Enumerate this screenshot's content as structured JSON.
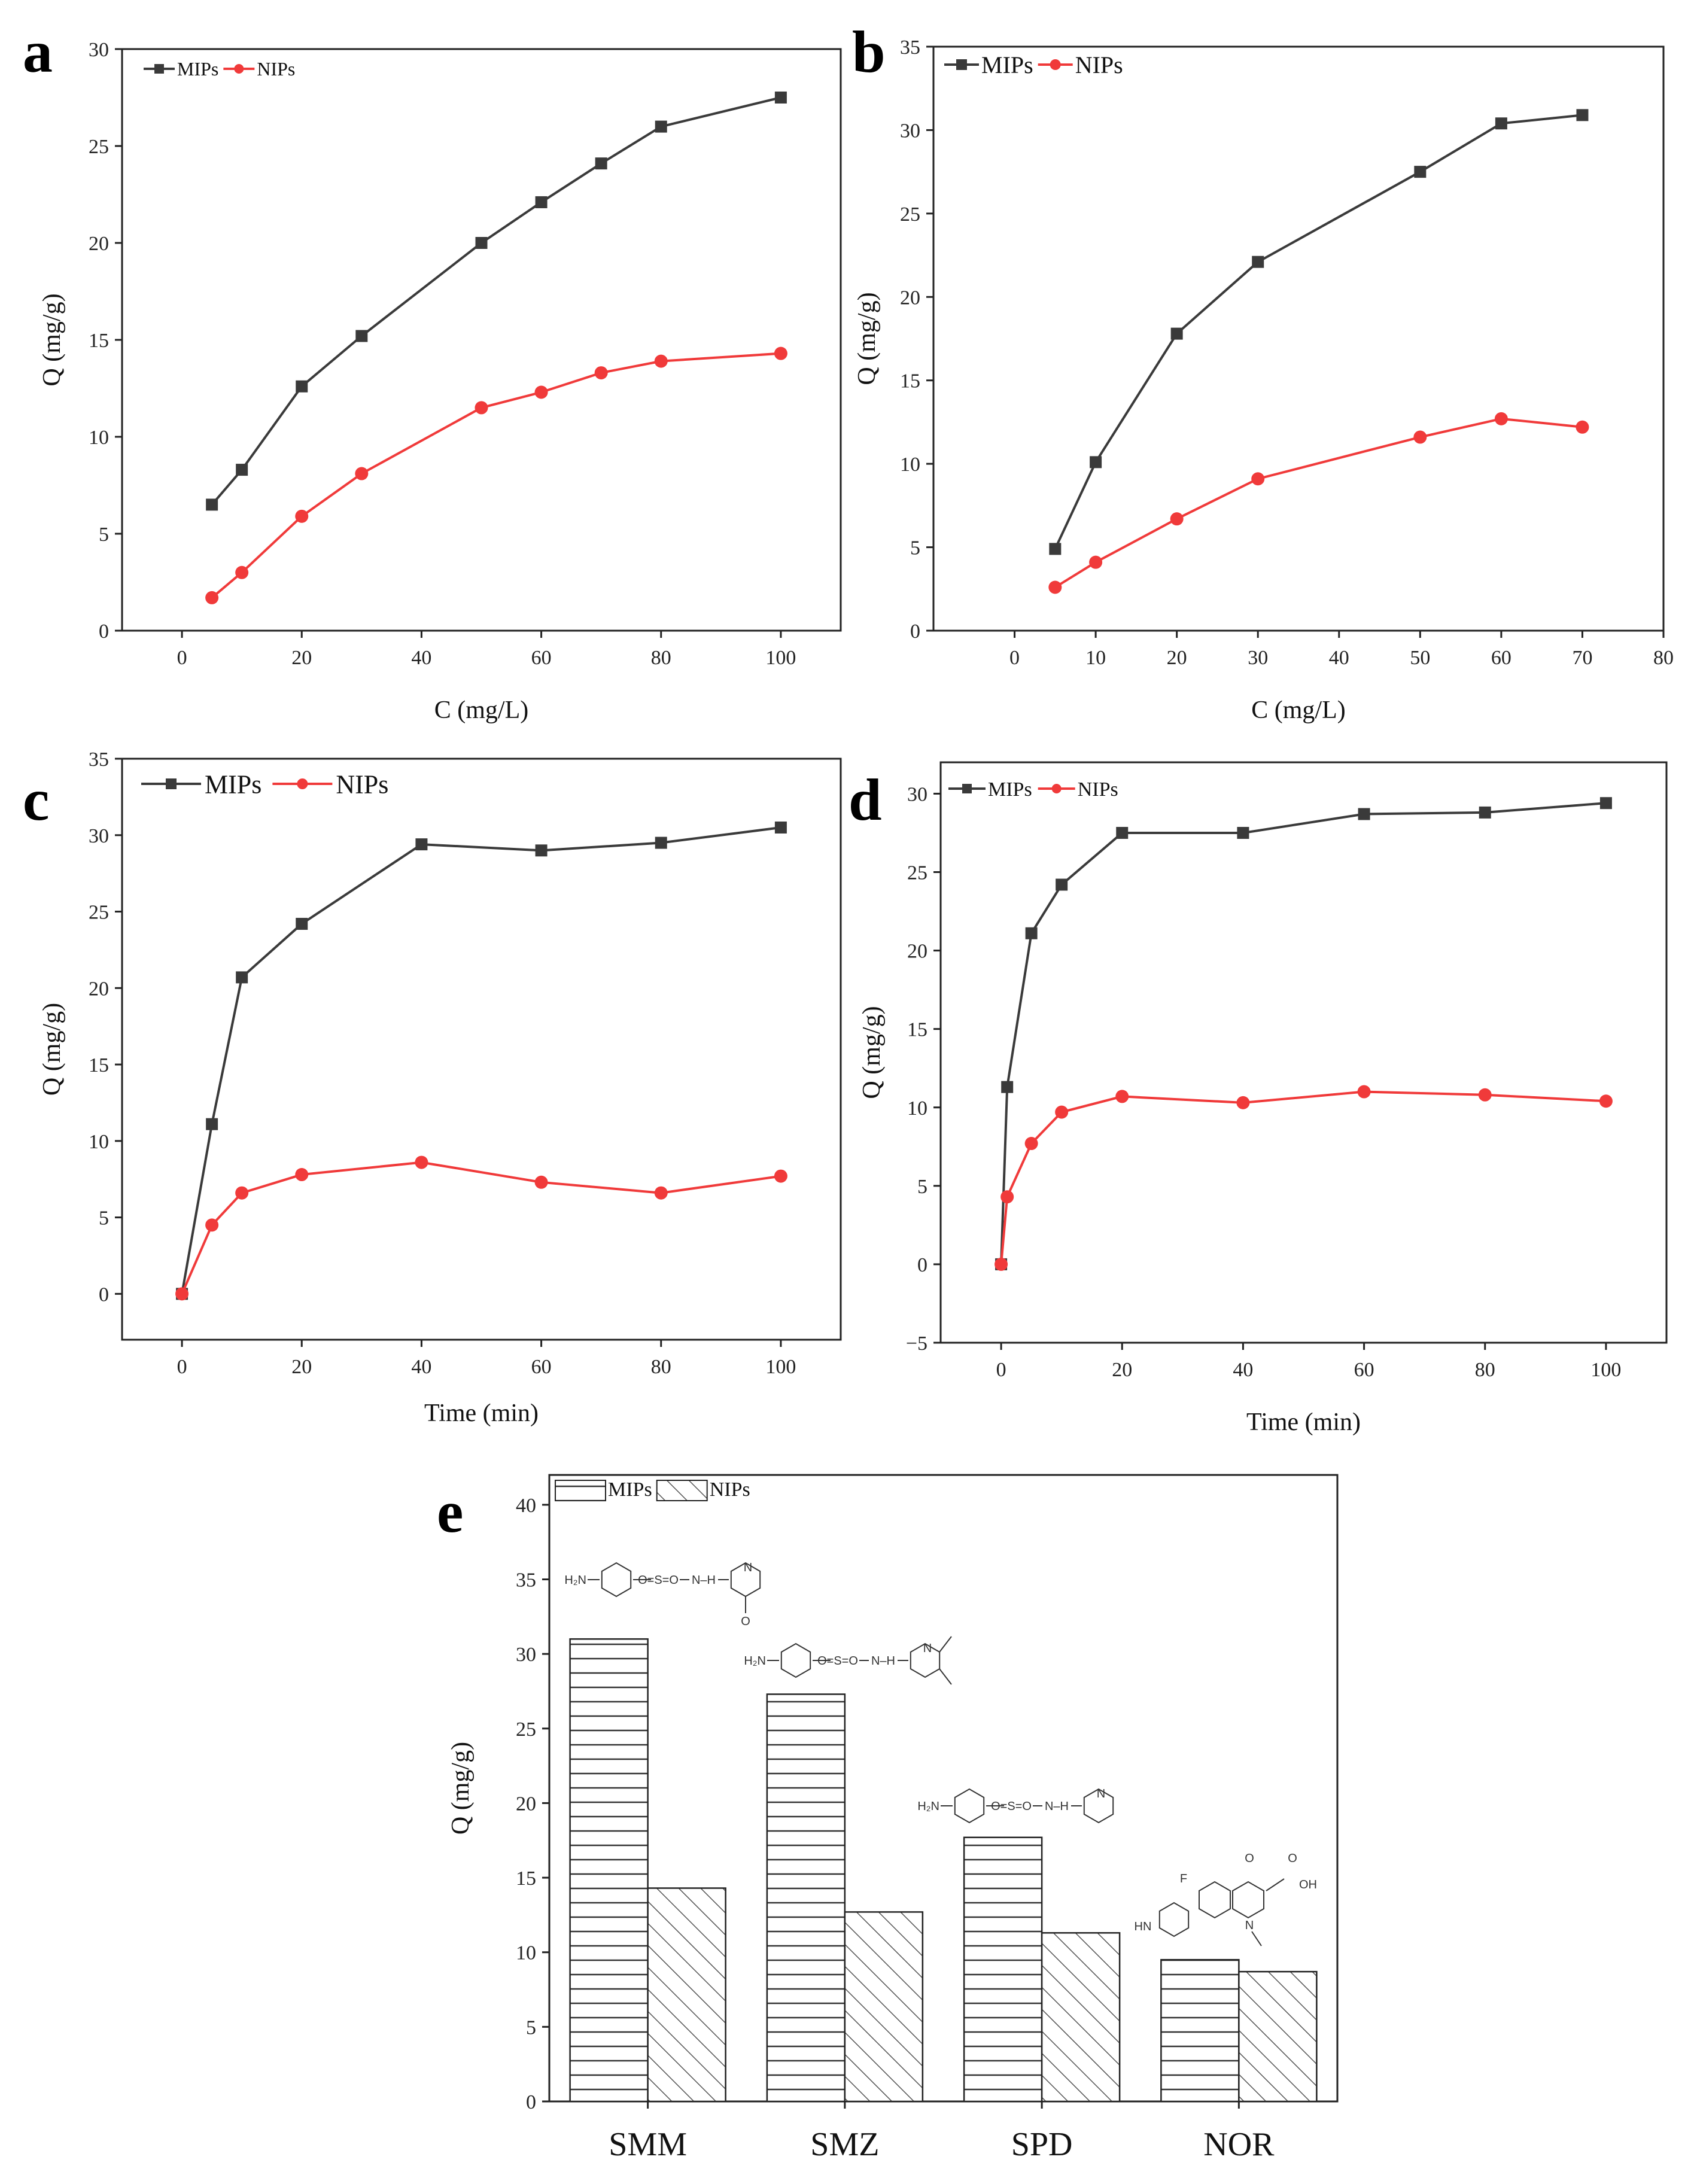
{
  "figure": {
    "chart_data": [
      {
        "panel": "a",
        "type": "line",
        "xlabel": "C (mg/L)",
        "ylabel": "Q (mg/g)",
        "xlim": [
          -10,
          110
        ],
        "ylim": [
          0,
          30
        ],
        "xticks": [
          0,
          20,
          40,
          60,
          80,
          100
        ],
        "yticks": [
          0,
          5,
          10,
          15,
          20,
          25,
          30
        ],
        "legend": "top-left",
        "series": [
          {
            "name": "MIPs",
            "color": "#3a3a3a",
            "marker": "square",
            "x": [
              5,
              10,
              20,
              30,
              50,
              60,
              70,
              80,
              100
            ],
            "y": [
              6.5,
              8.3,
              12.6,
              15.2,
              20.0,
              22.1,
              24.1,
              26.0,
              27.5
            ]
          },
          {
            "name": "NIPs",
            "color": "#f03a3a",
            "marker": "circle",
            "x": [
              5,
              10,
              20,
              30,
              50,
              60,
              70,
              80,
              100
            ],
            "y": [
              1.7,
              3.0,
              5.9,
              8.1,
              11.5,
              12.3,
              13.3,
              13.9,
              14.3
            ]
          }
        ]
      },
      {
        "panel": "b",
        "type": "line",
        "xlabel": "C (mg/L)",
        "ylabel": "Q (mg/g)",
        "xlim": [
          -10,
          80
        ],
        "ylim": [
          0,
          35
        ],
        "xticks": [
          0,
          10,
          20,
          30,
          40,
          50,
          60,
          70,
          80
        ],
        "yticks": [
          0,
          5,
          10,
          15,
          20,
          25,
          30,
          35
        ],
        "legend": "top-left",
        "series": [
          {
            "name": "MIPs",
            "color": "#3a3a3a",
            "marker": "square",
            "x": [
              5,
              10,
              20,
              30,
              50,
              60,
              70
            ],
            "y": [
              4.9,
              10.1,
              17.8,
              22.1,
              27.5,
              30.4,
              30.9
            ]
          },
          {
            "name": "NIPs",
            "color": "#f03a3a",
            "marker": "circle",
            "x": [
              5,
              10,
              20,
              30,
              50,
              60,
              70
            ],
            "y": [
              2.6,
              4.1,
              6.7,
              9.1,
              11.6,
              12.7,
              12.2
            ]
          }
        ]
      },
      {
        "panel": "c",
        "type": "line",
        "xlabel": "Time (min)",
        "ylabel": "Q (mg/g)",
        "xlim": [
          -10,
          110
        ],
        "ylim": [
          -3,
          35
        ],
        "xticks": [
          0,
          20,
          40,
          60,
          80,
          100
        ],
        "yticks": [
          0,
          5,
          10,
          15,
          20,
          25,
          30,
          35
        ],
        "legend": "top-left",
        "series": [
          {
            "name": "MIPs",
            "color": "#3a3a3a",
            "marker": "square",
            "x": [
              0,
              5,
              10,
              20,
              40,
              60,
              80,
              100
            ],
            "y": [
              0.0,
              11.1,
              20.7,
              24.2,
              29.4,
              29.0,
              29.5,
              30.5
            ]
          },
          {
            "name": "NIPs",
            "color": "#f03a3a",
            "marker": "circle",
            "x": [
              0,
              5,
              10,
              20,
              40,
              60,
              80,
              100
            ],
            "y": [
              0.0,
              4.5,
              6.6,
              7.8,
              8.6,
              7.3,
              6.6,
              7.7
            ]
          }
        ]
      },
      {
        "panel": "d",
        "type": "line",
        "xlabel": "Time (min)",
        "ylabel": "Q (mg/g)",
        "xlim": [
          -10,
          110
        ],
        "ylim": [
          -5,
          32
        ],
        "xticks": [
          0,
          20,
          40,
          60,
          80,
          100
        ],
        "yticks": [
          -5,
          0,
          5,
          10,
          15,
          20,
          25,
          30
        ],
        "ytick_labels": [
          "−5",
          "0",
          "5",
          "10",
          "15",
          "20",
          "25",
          "30"
        ],
        "legend": "top-left",
        "series": [
          {
            "name": "MIPs",
            "color": "#3a3a3a",
            "marker": "square",
            "x": [
              0,
              1,
              5,
              10,
              20,
              40,
              60,
              80,
              100
            ],
            "y": [
              0.0,
              11.3,
              21.1,
              24.2,
              27.5,
              27.5,
              28.7,
              28.8,
              29.4
            ]
          },
          {
            "name": "NIPs",
            "color": "#f03a3a",
            "marker": "circle",
            "x": [
              0,
              1,
              5,
              10,
              20,
              40,
              60,
              80,
              100
            ],
            "y": [
              0.0,
              4.3,
              7.7,
              9.7,
              10.7,
              10.3,
              11.0,
              10.8,
              10.4
            ]
          }
        ]
      },
      {
        "panel": "e",
        "type": "bar",
        "xlabel": "",
        "ylabel": "Q (mg/g)",
        "ylim": [
          0,
          42
        ],
        "yticks": [
          0,
          5,
          10,
          15,
          20,
          25,
          30,
          35,
          40
        ],
        "categories": [
          "SMM",
          "SMZ",
          "SPD",
          "NOR"
        ],
        "legend": "top-left",
        "series": [
          {
            "name": "MIPs",
            "pattern": "horizontal-lines",
            "values": [
              31.0,
              27.3,
              17.7,
              9.5
            ]
          },
          {
            "name": "NIPs",
            "pattern": "diagonal-hatch",
            "values": [
              14.3,
              12.7,
              11.3,
              8.7
            ]
          }
        ],
        "structure_labels": {
          "SMM": {
            "amine": "H₂N",
            "sulfonyl": "O=S=O",
            "nh": "N–H",
            "ring_n": "N",
            "methoxy": "O"
          },
          "SMZ": {
            "amine": "H₂N",
            "sulfonyl": "O=S=O",
            "nh": "N–H",
            "ring_n": "N"
          },
          "SPD": {
            "amine": "H₂N",
            "sulfonyl": "O=S=O",
            "nh": "N–H",
            "ring_n": "N"
          },
          "NOR": {
            "fluoro": "F",
            "keto": "O",
            "acid_o": "O",
            "acid": "OH",
            "ring_n": "N",
            "piperazine_nh": "HN"
          }
        }
      }
    ]
  }
}
